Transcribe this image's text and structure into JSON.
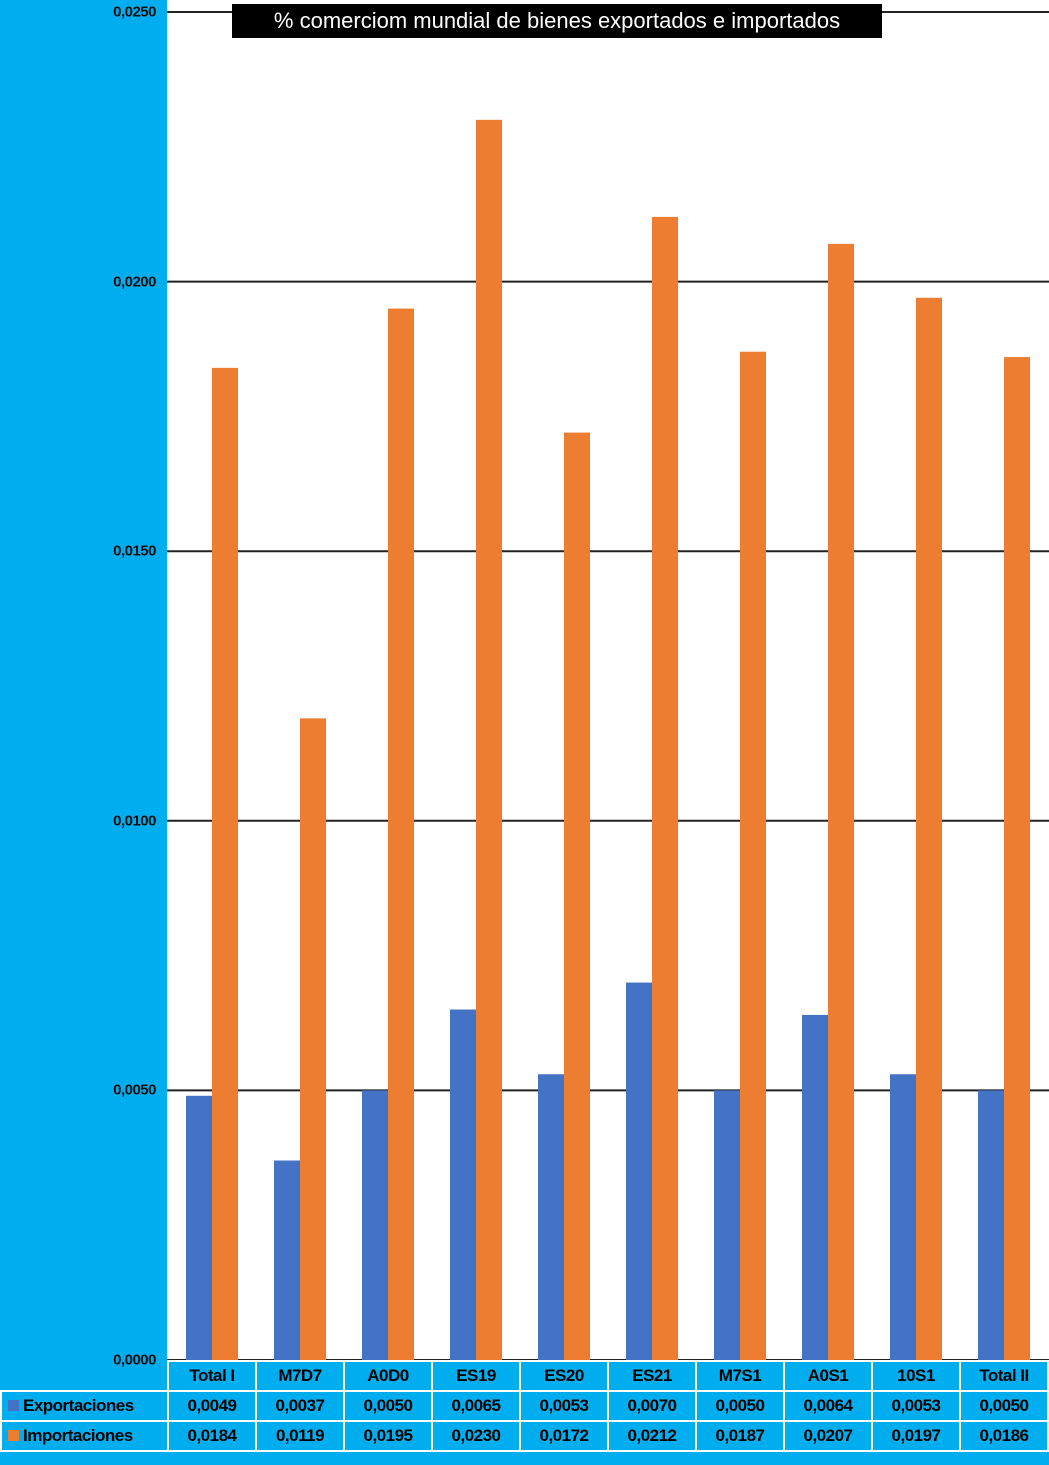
{
  "chart_data": {
    "type": "bar",
    "title": "% comerciom mundial de bienes exportados e importados",
    "categories": [
      "Total I",
      "M7D7",
      "A0D0",
      "ES19",
      "ES20",
      "ES21",
      "M7S1",
      "A0S1",
      "10S1",
      "Total II"
    ],
    "series": [
      {
        "name": "Exportaciones",
        "color": "#4472C4",
        "values": [
          0.0049,
          0.0037,
          0.005,
          0.0065,
          0.0053,
          0.007,
          0.005,
          0.0064,
          0.0053,
          0.005
        ],
        "labels": [
          "0,0049",
          "0,0037",
          "0,0050",
          "0,0065",
          "0,0053",
          "0,0070",
          "0,0050",
          "0,0064",
          "0,0053",
          "0,0050"
        ]
      },
      {
        "name": "Importaciones",
        "color": "#ED7D31",
        "values": [
          0.0184,
          0.0119,
          0.0195,
          0.023,
          0.0172,
          0.0212,
          0.0187,
          0.0207,
          0.0197,
          0.0186
        ],
        "labels": [
          "0,0184",
          "0,0119",
          "0,0195",
          "0,0230",
          "0,0172",
          "0,0212",
          "0,0187",
          "0,0207",
          "0,0197",
          "0,0186"
        ]
      }
    ],
    "ylim": [
      0,
      0.025
    ],
    "yticks": [
      "0,0000",
      "0,0050",
      "0,0100",
      "0,0150",
      "0,0200",
      "0,0250"
    ],
    "grid": true,
    "legend": "data-table"
  }
}
